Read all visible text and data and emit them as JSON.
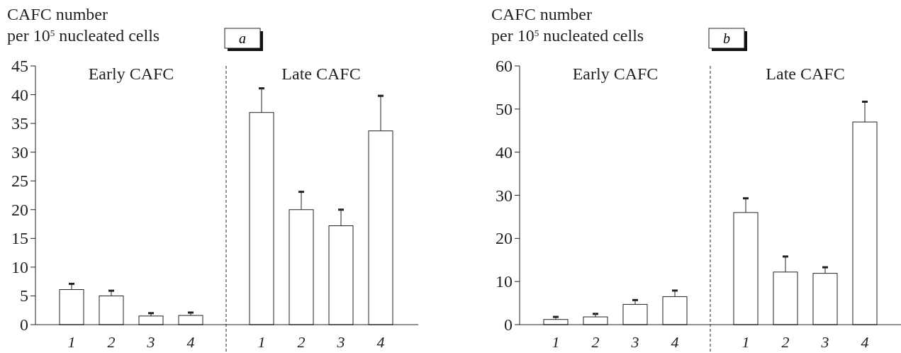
{
  "chart_data": [
    {
      "type": "bar",
      "title": "a",
      "ylabel": "CAFC number\nper 10$^{5}$ nucleated cells",
      "categories": [
        "1",
        "2",
        "3",
        "4",
        "1",
        "2",
        "3",
        "4"
      ],
      "values": [
        6.1,
        5.0,
        1.5,
        1.6,
        36.9,
        20.0,
        17.2,
        33.7
      ],
      "errors": [
        [
          6.1,
          7.1
        ],
        [
          5.0,
          5.9
        ],
        [
          1.5,
          2.0
        ],
        [
          1.6,
          2.1
        ],
        [
          36.9,
          41.1
        ],
        [
          20.0,
          23.1
        ],
        [
          17.2,
          20.0
        ],
        [
          33.7,
          39.8
        ]
      ],
      "color": "#ffffff",
      "ylim": [
        0,
        45
      ],
      "yticks": [
        0,
        5,
        10,
        15,
        20,
        25,
        30,
        35,
        40,
        45
      ],
      "annotations": [
        "Early CAFC",
        "Late CAFC"
      ]
    },
    {
      "type": "bar",
      "title": "b",
      "ylabel": "CAFC number\nper 10$^{5}$ nucleated cells",
      "categories": [
        "1",
        "2",
        "3",
        "4",
        "1",
        "2",
        "3",
        "4"
      ],
      "values": [
        1.2,
        1.8,
        4.7,
        6.5,
        26.0,
        12.2,
        11.9,
        47.0
      ],
      "errors": [
        [
          1.2,
          1.8
        ],
        [
          1.8,
          2.5
        ],
        [
          4.7,
          5.7
        ],
        [
          6.5,
          7.9
        ],
        [
          26.0,
          29.3
        ],
        [
          12.2,
          15.8
        ],
        [
          11.9,
          13.3
        ],
        [
          47.0,
          51.7
        ]
      ],
      "color": "#ffffff",
      "ylim": [
        0,
        60
      ],
      "yticks": [
        0,
        10,
        20,
        30,
        40,
        50,
        60
      ],
      "annotations": [
        "Early CAFC",
        "Late CAFC"
      ]
    }
  ]
}
